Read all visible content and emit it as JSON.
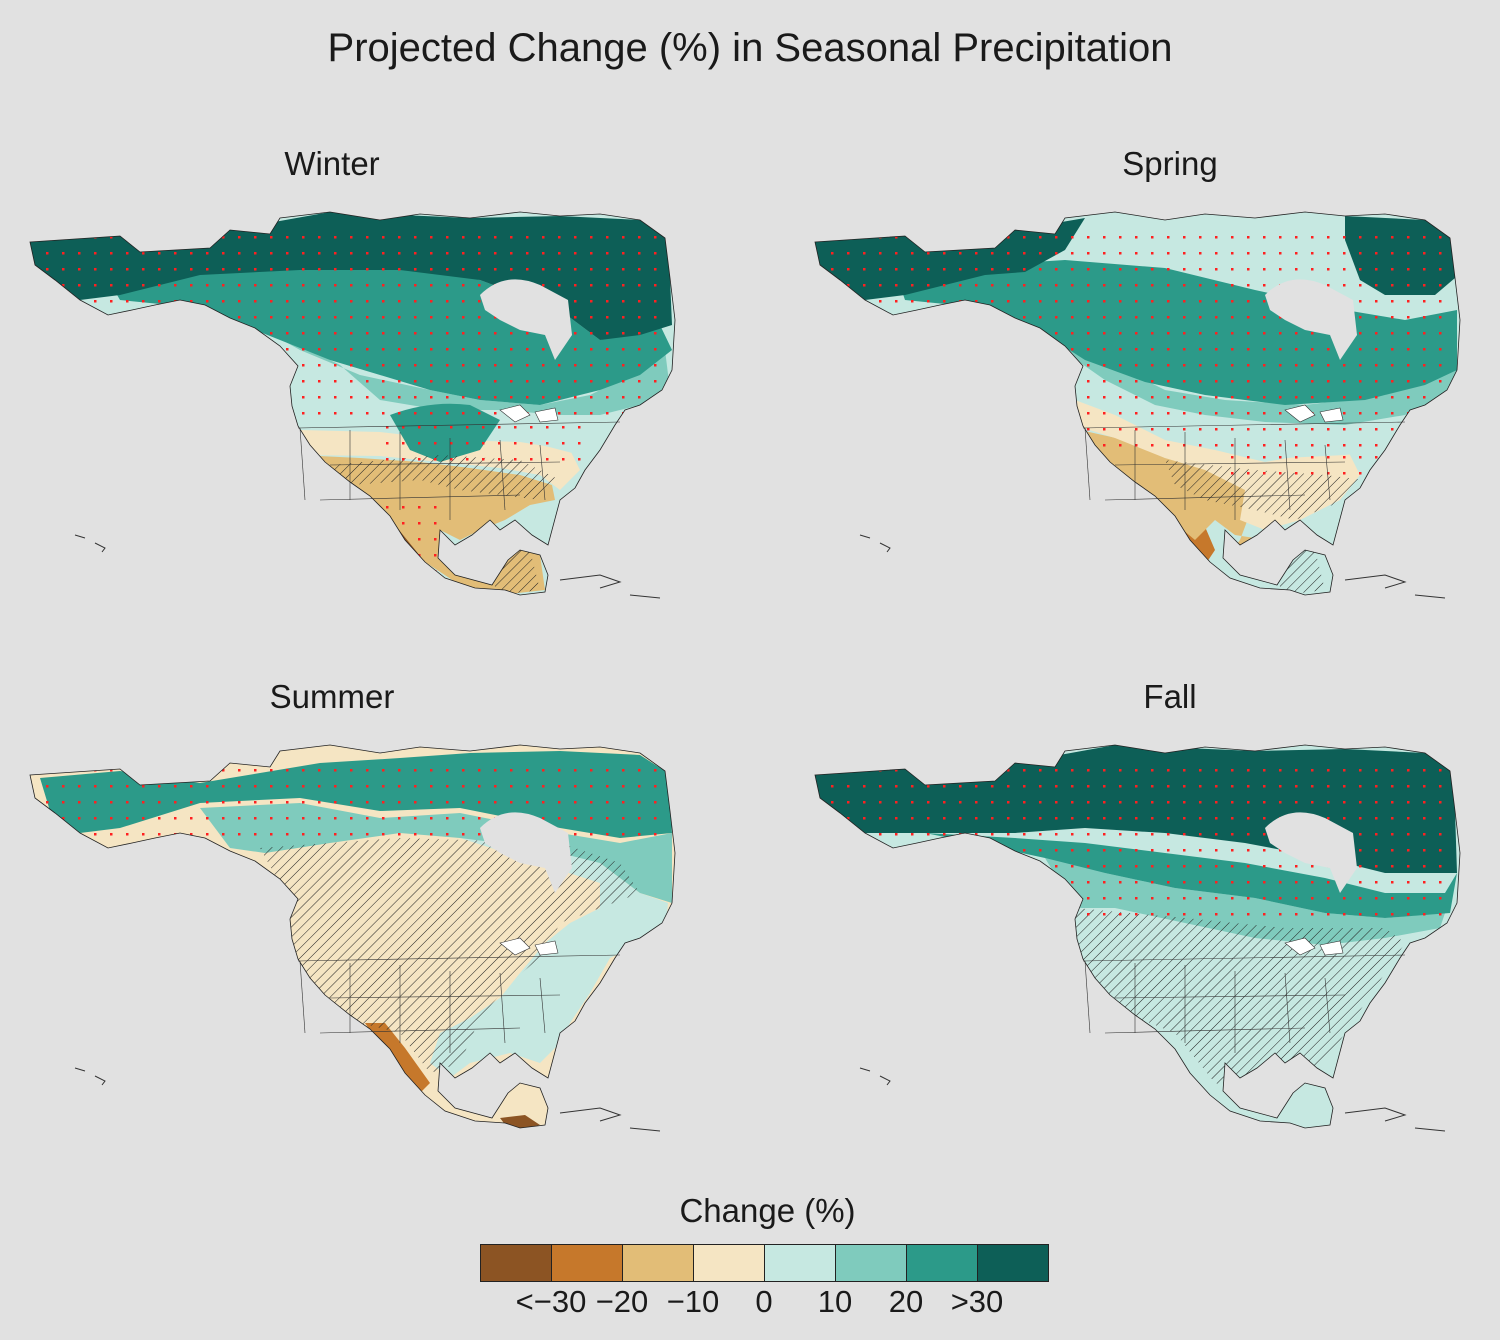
{
  "title": "Projected Change (%) in Seasonal Precipitation",
  "panels": [
    {
      "label": "Winter",
      "pattern": "winter"
    },
    {
      "label": "Spring",
      "pattern": "spring"
    },
    {
      "label": "Summer",
      "pattern": "summer"
    },
    {
      "label": "Fall",
      "pattern": "fall"
    }
  ],
  "legend": {
    "title": "Change (%)",
    "bins": [
      {
        "color": "#8c5423"
      },
      {
        "color": "#c6782b"
      },
      {
        "color": "#e2bd77"
      },
      {
        "color": "#f5e5c3"
      },
      {
        "color": "#c6e8e1"
      },
      {
        "color": "#7fcbbd"
      },
      {
        "color": "#2c9a89"
      },
      {
        "color": "#0d5f57"
      }
    ],
    "ticks": [
      "<−30",
      "−20",
      "−10",
      "0",
      "10",
      "20",
      ">30"
    ]
  },
  "colors": {
    "background": "#e1e1e1",
    "stipple": "#ff2020",
    "hatch": "#222222"
  }
}
